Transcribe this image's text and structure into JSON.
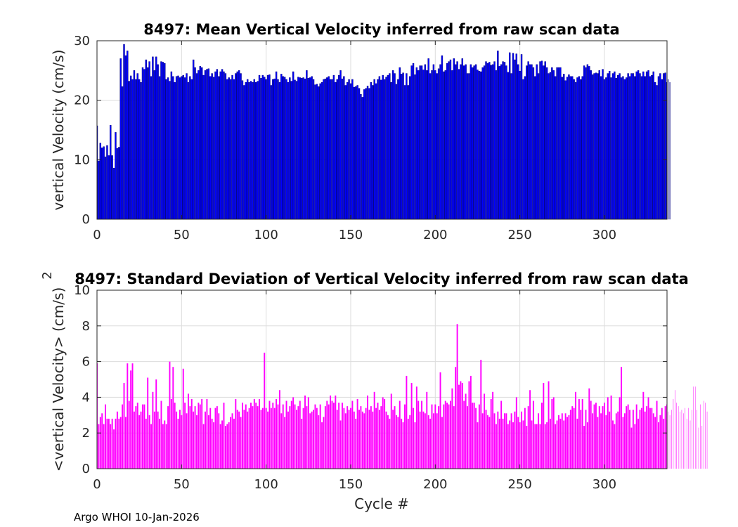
{
  "figure": {
    "footer": "Argo WHOI 10-Jan-2026"
  },
  "colors": {
    "top_bar": "#0000ff",
    "top_edge": "#000080",
    "bottom_bar": "#ff00ff",
    "grid": "#dcdcdc",
    "axis": "#262626"
  },
  "chart_data": [
    {
      "type": "bar",
      "title": "8497: Mean Vertical Velocity inferred from raw scan data",
      "xlabel": "",
      "ylabel": "vertical Velocity (cm/s)",
      "xlim": [
        0,
        337
      ],
      "ylim": [
        0,
        30
      ],
      "xticks": [
        "0",
        "50",
        "100",
        "150",
        "200",
        "250",
        "300"
      ],
      "yticks": [
        "0",
        "10",
        "20",
        "30"
      ],
      "x_start": 0,
      "values": [
        15.7,
        9.8,
        12.8,
        12.0,
        12.2,
        10.5,
        12.4,
        10.7,
        15.8,
        10.7,
        8.6,
        14.6,
        11.9,
        12.1,
        27.0,
        22.3,
        29.4,
        27.5,
        28.3,
        23.2,
        24.1,
        23.5,
        25.0,
        23.5,
        24.5,
        23.5,
        23.0,
        25.5,
        25.2,
        26.8,
        25.5,
        26.5,
        24.0,
        27.3,
        25.0,
        27.3,
        26.0,
        24.0,
        26.5,
        26.4,
        26.2,
        23.5,
        23.8,
        23.2,
        24.8,
        24.0,
        23.0,
        24.0,
        24.1,
        23.8,
        24.0,
        24.2,
        23.8,
        24.5,
        23.0,
        24.0,
        23.5,
        26.8,
        25.5,
        24.5,
        25.0,
        25.7,
        25.5,
        24.2,
        25.0,
        25.2,
        25.3,
        24.0,
        24.5,
        23.9,
        24.8,
        25.2,
        24.0,
        24.8,
        25.2,
        24.8,
        24.5,
        23.5,
        23.8,
        23.5,
        24.2,
        23.5,
        24.5,
        24.8,
        25.0,
        24.5,
        23.3,
        22.5,
        23.0,
        23.5,
        23.0,
        23.2,
        23.0,
        23.5,
        23.0,
        23.2,
        24.2,
        23.7,
        24.2,
        23.9,
        23.5,
        24.2,
        24.3,
        22.5,
        23.5,
        23.6,
        24.8,
        23.5,
        23.0,
        24.4,
        24.0,
        23.9,
        23.5,
        23.0,
        23.8,
        23.2,
        24.8,
        23.4,
        23.2,
        23.9,
        23.8,
        23.7,
        23.8,
        23.6,
        25.0,
        23.7,
        23.8,
        24.0,
        23.5,
        22.6,
        22.7,
        22.3,
        22.8,
        23.0,
        23.5,
        23.6,
        23.8,
        24.0,
        23.5,
        23.5,
        24.2,
        23.0,
        23.5,
        24.2,
        25.0,
        23.6,
        24.0,
        22.5,
        23.0,
        23.5,
        22.8,
        23.5,
        22.2,
        22.3,
        22.5,
        22.0,
        21.0,
        20.5,
        21.8,
        22.0,
        22.4,
        22.0,
        23.0,
        22.5,
        23.5,
        22.8,
        23.5,
        24.0,
        23.4,
        24.2,
        23.5,
        23.9,
        24.2,
        24.5,
        23.0,
        25.0,
        24.5,
        22.7,
        23.5,
        25.5,
        24.4,
        24.6,
        22.5,
        24.5,
        22.5,
        24.0,
        25.8,
        26.2,
        24.3,
        25.5,
        25.0,
        25.8,
        25.8,
        25.1,
        26.0,
        25.0,
        27.0,
        24.5,
        25.0,
        26.0,
        25.0,
        24.5,
        25.3,
        26.0,
        27.5,
        24.8,
        25.0,
        26.2,
        26.5,
        26.8,
        25.0,
        27.0,
        26.0,
        26.5,
        25.2,
        26.0,
        27.0,
        25.8,
        26.0,
        24.5,
        24.5,
        26.0,
        25.5,
        25.8,
        26.0,
        25.1,
        24.9,
        24.8,
        25.5,
        25.8,
        26.5,
        26.2,
        26.4,
        25.9,
        26.0,
        26.5,
        25.0,
        28.3,
        25.7,
        26.0,
        26.5,
        26.4,
        25.8,
        24.7,
        28.0,
        24.5,
        27.9,
        26.8,
        27.8,
        26.0,
        24.9,
        27.7,
        23.5,
        24.0,
        25.8,
        26.5,
        26.0,
        26.0,
        25.5,
        24.0,
        26.0,
        24.5,
        26.5,
        26.6,
        25.8,
        26.5,
        25.5,
        24.5,
        24.7,
        25.5,
        25.0,
        24.0,
        25.5,
        25.5,
        25.5,
        23.9,
        24.4,
        23.3,
        23.9,
        24.3,
        24.0,
        24.0,
        23.5,
        23.0,
        23.8,
        24.0,
        23.5,
        24.0,
        25.8,
        25.5,
        26.0,
        25.7,
        25.0,
        24.3,
        24.5,
        24.6,
        24.5,
        25.0,
        24.0,
        25.2,
        23.5,
        23.8,
        24.5,
        24.9,
        23.8,
        24.5,
        24.8,
        23.7,
        24.2,
        24.5,
        23.8,
        24.0,
        23.5,
        23.8,
        24.5,
        24.0,
        24.5,
        24.5,
        24.0,
        24.8,
        25.0,
        24.5,
        24.0,
        24.8,
        24.0,
        24.8,
        25.0,
        24.0,
        24.2,
        24.8,
        23.0,
        22.5,
        24.0,
        24.5,
        23.5,
        24.5,
        24.6,
        23.0,
        23.5,
        23.0
      ]
    },
    {
      "type": "bar",
      "title": "8497: Standard Deviation of Vertical Velocity inferred from raw scan data",
      "xlabel": "Cycle #",
      "ylabel": "<vertical Velocity> (cm/s)",
      "ylabel_superscript": "2",
      "xlim": [
        0,
        337
      ],
      "ylim": [
        0,
        10
      ],
      "xticks": [
        "0",
        "50",
        "100",
        "150",
        "200",
        "250",
        "300"
      ],
      "yticks": [
        "0",
        "2",
        "4",
        "6",
        "8",
        "10"
      ],
      "x_start": 0,
      "values": [
        5.9,
        2.5,
        2.9,
        3.1,
        2.5,
        3.6,
        2.8,
        2.8,
        2.5,
        2.8,
        2.2,
        2.8,
        3.2,
        2.8,
        2.9,
        3.6,
        4.8,
        2.9,
        5.9,
        3.8,
        5.5,
        5.9,
        3.2,
        3.5,
        3.7,
        3.0,
        3.2,
        3.6,
        3.6,
        2.8,
        5.1,
        3.0,
        2.5,
        4.3,
        3.2,
        5.0,
        3.2,
        2.8,
        3.8,
        2.5,
        2.7,
        2.5,
        3.5,
        6.0,
        3.9,
        5.7,
        3.7,
        3.2,
        2.8,
        3.3,
        3.0,
        5.6,
        3.7,
        3.1,
        4.2,
        3.5,
        3.9,
        3.2,
        3.5,
        3.0,
        3.7,
        3.6,
        3.9,
        2.5,
        3.2,
        3.9,
        3.0,
        3.4,
        2.8,
        2.6,
        3.4,
        3.5,
        3.1,
        2.5,
        2.7,
        3.7,
        2.4,
        2.5,
        2.6,
        2.9,
        3.1,
        2.8,
        3.9,
        3.3,
        3.2,
        2.9,
        3.7,
        3.3,
        3.6,
        3.2,
        3.4,
        3.7,
        3.5,
        3.9,
        3.7,
        3.5,
        3.9,
        3.3,
        3.4,
        6.5,
        3.4,
        3.2,
        3.8,
        3.4,
        3.7,
        3.4,
        3.9,
        3.6,
        4.4,
        3.1,
        3.6,
        2.9,
        3.8,
        3.2,
        3.5,
        3.8,
        4.0,
        3.6,
        3.3,
        3.5,
        3.8,
        2.8,
        3.4,
        4.1,
        3.5,
        4.0,
        3.1,
        3.2,
        3.3,
        3.6,
        3.4,
        3.0,
        3.6,
        2.6,
        2.9,
        3.5,
        3.8,
        3.6,
        4.1,
        3.8,
        3.7,
        4.1,
        3.3,
        3.7,
        2.7,
        3.7,
        3.4,
        3.1,
        3.5,
        3.3,
        3.4,
        3.8,
        3.2,
        2.8,
        3.9,
        3.3,
        3.5,
        3.2,
        3.1,
        3.4,
        4.1,
        3.3,
        3.5,
        3.2,
        4.3,
        3.4,
        3.7,
        3.3,
        3.5,
        4.0,
        3.9,
        3.2,
        3.0,
        2.8,
        4.2,
        3.3,
        3.5,
        3.0,
        2.9,
        3.8,
        2.8,
        2.6,
        3.6,
        5.2,
        2.8,
        3.0,
        4.8,
        3.4,
        2.6,
        4.6,
        3.8,
        3.2,
        3.8,
        3.2,
        3.1,
        4.3,
        3.0,
        2.8,
        3.6,
        3.1,
        3.6,
        3.1,
        3.5,
        5.4,
        2.9,
        3.6,
        3.8,
        3.7,
        3.6,
        3.8,
        4.5,
        3.5,
        5.7,
        8.1,
        4.7,
        4.9,
        4.8,
        3.8,
        4.2,
        3.5,
        4.9,
        5.2,
        3.7,
        3.7,
        3.4,
        2.6,
        3.6,
        6.1,
        3.1,
        4.2,
        3.3,
        3.0,
        2.9,
        3.9,
        4.3,
        3.1,
        2.5,
        3.2,
        2.8,
        3.8,
        2.8,
        3.1,
        3.1,
        2.5,
        2.7,
        3.1,
        2.6,
        3.2,
        4.0,
        2.9,
        2.6,
        3.2,
        2.7,
        3.4,
        2.4,
        3.5,
        4.4,
        2.7,
        3.8,
        2.5,
        2.5,
        3.1,
        2.5,
        3.7,
        4.8,
        2.5,
        2.6,
        4.9,
        2.8,
        3.9,
        4.0,
        2.5,
        2.7,
        3.0,
        2.8,
        3.1,
        2.7,
        3.1,
        2.9,
        3.0,
        3.3,
        3.5,
        3.4,
        4.3,
        2.8,
        3.9,
        3.3,
        3.9,
        2.4,
        3.3,
        2.6,
        4.5,
        3.8,
        3.1,
        3.6,
        3.7,
        2.9,
        3.5,
        3.1,
        3.5,
        3.7,
        3.0,
        4.0,
        3.2,
        4.1,
        2.7,
        2.5,
        3.1,
        3.2,
        4.0,
        5.7,
        2.9,
        3.1,
        3.5,
        3.6,
        3.3,
        2.3,
        3.3,
        2.5,
        3.6,
        2.8,
        3.3,
        3.4,
        4.3,
        3.2,
        3.5,
        4.0,
        3.4,
        3.4,
        3.1,
        2.9,
        3.8,
        2.6,
        3.0,
        3.4,
        2.8,
        3.5,
        3.6,
        3.2,
        3.0,
        3.3,
        3.9,
        4.4,
        3.7,
        3.5,
        3.2,
        3.3,
        3.1,
        3.4,
        2.8,
        3.4,
        2.7,
        3.3,
        4.6,
        4.6,
        3.3,
        2.3,
        3.6,
        2.4,
        3.8,
        3.7,
        3.2
      ]
    }
  ]
}
